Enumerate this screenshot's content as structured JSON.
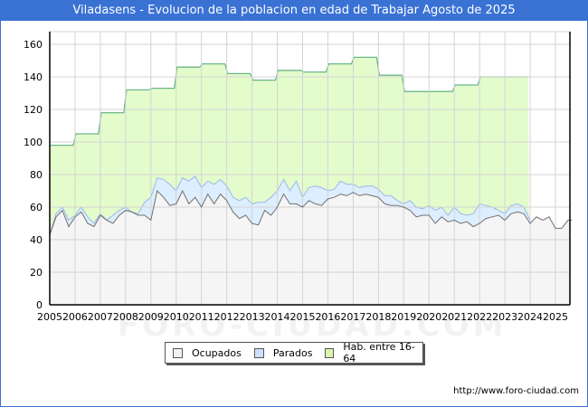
{
  "header": {
    "title": "Viladasens - Evolucion de la poblacion en edad de Trabajar Agosto de 2025"
  },
  "legend": {
    "items": [
      {
        "label": "Ocupados",
        "color": "#f2f2f2"
      },
      {
        "label": "Parados",
        "color": "#cce0ff"
      },
      {
        "label": "Hab. entre 16-64",
        "color": "#d9f5b0"
      }
    ]
  },
  "footer": {
    "url": "http://www.foro-ciudad.com"
  },
  "watermark": {
    "text": "FORO-CIUDAD.COM"
  },
  "chart_data": {
    "type": "area",
    "title": "Viladasens - Evolucion de la poblacion en edad de Trabajar Agosto de 2025",
    "xlabel": "",
    "ylabel": "",
    "ylim": [
      0,
      168
    ],
    "xlim": [
      2005,
      2025.65
    ],
    "yticks": [
      0,
      20,
      40,
      60,
      80,
      100,
      120,
      140,
      160
    ],
    "xticks": [
      "2005",
      "2006",
      "2007",
      "2008",
      "2009",
      "2010",
      "2011",
      "2012",
      "2013",
      "2014",
      "2015",
      "2016",
      "2017",
      "2018",
      "2019",
      "2020",
      "2021",
      "2022",
      "2023",
      "2024",
      "2025"
    ],
    "grid": true,
    "legend_position": "bottom",
    "series": [
      {
        "name": "Hab. entre 16-64",
        "kind": "step",
        "x": [
          2005,
          2006,
          2007,
          2008,
          2009,
          2010,
          2011,
          2012,
          2013,
          2014,
          2015,
          2016,
          2017,
          2018,
          2019,
          2020,
          2021,
          2022,
          2023,
          2024
        ],
        "values": [
          98,
          105,
          118,
          132,
          133,
          146,
          148,
          142,
          138,
          144,
          143,
          148,
          152,
          141,
          131,
          131,
          135,
          140,
          140,
          null
        ]
      },
      {
        "name": "Parados (top = Ocupados + Parados)",
        "x": [
          2005,
          2005.25,
          2005.5,
          2005.75,
          2006,
          2006.25,
          2006.5,
          2006.75,
          2007,
          2007.25,
          2007.5,
          2007.75,
          2008,
          2008.25,
          2008.5,
          2008.75,
          2009,
          2009.25,
          2009.5,
          2009.75,
          2010,
          2010.25,
          2010.5,
          2010.75,
          2011,
          2011.25,
          2011.5,
          2011.75,
          2012,
          2012.25,
          2012.5,
          2012.75,
          2013,
          2013.25,
          2013.5,
          2013.75,
          2014,
          2014.25,
          2014.5,
          2014.75,
          2015,
          2015.25,
          2015.5,
          2015.75,
          2016,
          2016.25,
          2016.5,
          2016.75,
          2017,
          2017.25,
          2017.5,
          2017.75,
          2018,
          2018.25,
          2018.5,
          2018.75,
          2019,
          2019.25,
          2019.5,
          2019.75,
          2020,
          2020.25,
          2020.5,
          2020.75,
          2021,
          2021.25,
          2021.5,
          2021.75,
          2022,
          2022.25,
          2022.5,
          2022.75,
          2023,
          2023.25,
          2023.5,
          2023.75,
          2024
        ],
        "values": [
          43,
          56,
          60,
          52,
          55,
          60,
          54,
          50,
          56,
          52,
          55,
          58,
          60,
          57,
          56,
          63,
          66,
          78,
          77,
          74,
          70,
          78,
          76,
          79,
          72,
          76,
          74,
          77,
          73,
          66,
          64,
          66,
          62,
          63,
          63,
          66,
          70,
          77,
          70,
          76,
          66,
          72,
          73,
          72,
          70,
          71,
          76,
          74,
          74,
          72,
          73,
          73,
          71,
          67,
          67,
          64,
          62,
          64,
          60,
          59,
          61,
          58,
          60,
          55,
          60,
          56,
          55,
          56,
          62,
          61,
          60,
          58,
          56,
          61,
          62,
          60,
          52
        ]
      },
      {
        "name": "Ocupados",
        "x": [
          2005,
          2005.25,
          2005.5,
          2005.75,
          2006,
          2006.25,
          2006.5,
          2006.75,
          2007,
          2007.25,
          2007.5,
          2007.75,
          2008,
          2008.25,
          2008.5,
          2008.75,
          2009,
          2009.25,
          2009.5,
          2009.75,
          2010,
          2010.25,
          2010.5,
          2010.75,
          2011,
          2011.25,
          2011.5,
          2011.75,
          2012,
          2012.25,
          2012.5,
          2012.75,
          2013,
          2013.25,
          2013.5,
          2013.75,
          2014,
          2014.25,
          2014.5,
          2014.75,
          2015,
          2015.25,
          2015.5,
          2015.75,
          2016,
          2016.25,
          2016.5,
          2016.75,
          2017,
          2017.25,
          2017.5,
          2017.75,
          2018,
          2018.25,
          2018.5,
          2018.75,
          2019,
          2019.25,
          2019.5,
          2019.75,
          2020,
          2020.25,
          2020.5,
          2020.75,
          2021,
          2021.25,
          2021.5,
          2021.75,
          2022,
          2022.25,
          2022.5,
          2022.75,
          2023,
          2023.25,
          2023.5,
          2023.75,
          2024,
          2024.25,
          2024.5,
          2024.75,
          2025,
          2025.25,
          2025.5,
          2025.65
        ],
        "values": [
          43,
          54,
          58,
          48,
          54,
          57,
          50,
          48,
          55,
          52,
          50,
          55,
          58,
          57,
          55,
          55,
          52,
          70,
          66,
          61,
          62,
          70,
          62,
          66,
          60,
          68,
          62,
          68,
          64,
          57,
          53,
          55,
          50,
          49,
          58,
          55,
          60,
          68,
          62,
          62,
          60,
          64,
          62,
          61,
          65,
          66,
          68,
          67,
          69,
          67,
          68,
          67,
          66,
          62,
          61,
          61,
          60,
          58,
          54,
          55,
          55,
          50,
          54,
          51,
          52,
          50,
          51,
          48,
          50,
          53,
          54,
          55,
          52,
          56,
          57,
          56,
          50,
          54,
          52,
          54,
          47,
          47,
          52,
          52
        ]
      }
    ]
  }
}
